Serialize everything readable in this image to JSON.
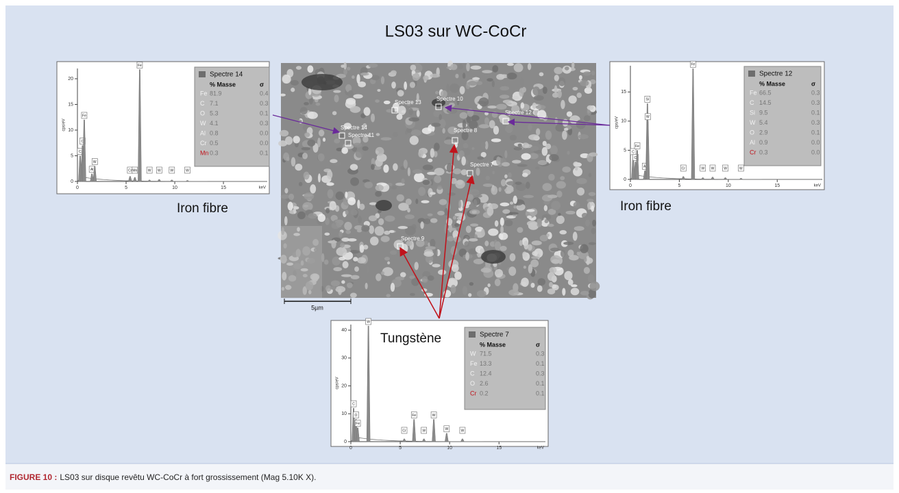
{
  "title": "LS03 sur WC-CoCr",
  "caption": {
    "label": "FIGURE 10 :",
    "text": "LS03 sur disque revêtu WC-CoCr à fort grossissement (Mag 5.10K X)."
  },
  "annotations": {
    "left": "Iron fibre",
    "right": "Iron fibre",
    "bottom": "Tungstène"
  },
  "sem": {
    "scale_bar": "5µm",
    "spots": [
      "Spectre 13",
      "Spectre 10",
      "Spectre 12",
      "Spectre 14",
      "Spectre 11",
      "Spectre 8",
      "Spectre 7",
      "Spectre 9"
    ]
  },
  "spectra": [
    {
      "x_label": "keV",
      "y_label": "cps/eV",
      "xlim": [
        0,
        19.5
      ],
      "ylim": [
        0,
        22
      ],
      "xticks": [
        0,
        5,
        10,
        15
      ],
      "yticks": [
        0,
        5,
        10,
        15,
        20
      ],
      "peaks": [
        {
          "label": "C",
          "energy": 0.28,
          "height": 5
        },
        {
          "label": "O",
          "energy": 0.52,
          "height": 7
        },
        {
          "label": "Fe",
          "energy": 0.7,
          "height": 12
        },
        {
          "label": "Al",
          "energy": 1.49,
          "height": 1.5
        },
        {
          "label": "W",
          "energy": 1.78,
          "height": 3
        },
        {
          "label": "Cr",
          "energy": 5.41,
          "height": 1
        },
        {
          "label": "Mn",
          "energy": 5.9,
          "height": 0.8
        },
        {
          "label": "Fe",
          "energy": 6.4,
          "height": 21.8
        },
        {
          "label": "W",
          "energy": 7.4,
          "height": 0.3
        },
        {
          "label": "W",
          "energy": 8.4,
          "height": 0.4
        },
        {
          "label": "W",
          "energy": 9.7,
          "height": 0.3
        },
        {
          "label": "W",
          "energy": 11.3,
          "height": 0.2
        }
      ],
      "table": {
        "title": "Spectre 14",
        "columns": [
          "% Masse",
          "σ"
        ],
        "rows": [
          [
            "Fe",
            "81.9",
            "0.4"
          ],
          [
            "C",
            "7.1",
            "0.3"
          ],
          [
            "O",
            "5.3",
            "0.1"
          ],
          [
            "W",
            "4.1",
            "0.3"
          ],
          [
            "Al",
            "0.8",
            "0.0"
          ],
          [
            "Cr",
            "0.5",
            "0.0"
          ],
          [
            "Mn",
            "0.3",
            "0.1"
          ]
        ]
      }
    },
    {
      "x_label": "keV",
      "y_label": "cps/eV",
      "xlim": [
        0,
        19.6
      ],
      "ylim": [
        0,
        19.5
      ],
      "xticks": [
        0,
        5,
        10,
        15
      ],
      "yticks": [
        0,
        5,
        10,
        15
      ],
      "peaks": [
        {
          "label": "C",
          "energy": 0.28,
          "height": 4
        },
        {
          "label": "O",
          "energy": 0.52,
          "height": 3
        },
        {
          "label": "Fe",
          "energy": 0.7,
          "height": 5
        },
        {
          "label": "Al",
          "energy": 1.49,
          "height": 1.5
        },
        {
          "label": "Si",
          "energy": 1.74,
          "height": 13
        },
        {
          "label": "W",
          "energy": 1.78,
          "height": 10
        },
        {
          "label": "Cr",
          "energy": 5.41,
          "height": 0.5
        },
        {
          "label": "Fe",
          "energy": 6.4,
          "height": 19
        },
        {
          "label": "W",
          "energy": 7.4,
          "height": 0.3
        },
        {
          "label": "W",
          "energy": 8.4,
          "height": 0.4
        },
        {
          "label": "W",
          "energy": 9.7,
          "height": 0.3
        },
        {
          "label": "W",
          "energy": 11.3,
          "height": 0.2
        }
      ],
      "table": {
        "title": "Spectre 12",
        "columns": [
          "% Masse",
          "σ"
        ],
        "rows": [
          [
            "Fe",
            "66.5",
            "0.3"
          ],
          [
            "C",
            "14.5",
            "0.3"
          ],
          [
            "Si",
            "9.5",
            "0.1"
          ],
          [
            "W",
            "5.4",
            "0.3"
          ],
          [
            "O",
            "2.9",
            "0.1"
          ],
          [
            "Al",
            "0.9",
            "0.0"
          ],
          [
            "Cr",
            "0.3",
            "0.0"
          ]
        ]
      }
    },
    {
      "x_label": "keV",
      "y_label": "cps/eV",
      "xlim": [
        0,
        19.7
      ],
      "ylim": [
        0,
        42
      ],
      "xticks": [
        0,
        5,
        10,
        15
      ],
      "yticks": [
        0,
        10,
        20,
        30,
        40
      ],
      "peaks": [
        {
          "label": "C",
          "energy": 0.28,
          "height": 12
        },
        {
          "label": "O",
          "energy": 0.52,
          "height": 8
        },
        {
          "label": "Fe",
          "energy": 0.7,
          "height": 5
        },
        {
          "label": "W",
          "energy": 1.78,
          "height": 41.5
        },
        {
          "label": "Cr",
          "energy": 5.41,
          "height": 1
        },
        {
          "label": "Fe",
          "energy": 6.4,
          "height": 8
        },
        {
          "label": "W",
          "energy": 7.4,
          "height": 1
        },
        {
          "label": "W",
          "energy": 8.4,
          "height": 8
        },
        {
          "label": "W",
          "energy": 9.7,
          "height": 3
        },
        {
          "label": "W",
          "energy": 11.3,
          "height": 1
        }
      ],
      "table": {
        "title": "Spectre 7",
        "columns": [
          "% Masse",
          "σ"
        ],
        "rows": [
          [
            "W",
            "71.5",
            "0.3"
          ],
          [
            "Fe",
            "13.3",
            "0.1"
          ],
          [
            "C",
            "12.4",
            "0.3"
          ],
          [
            "O",
            "2.6",
            "0.1"
          ],
          [
            "Cr",
            "0.2",
            "0.1"
          ]
        ]
      }
    }
  ]
}
